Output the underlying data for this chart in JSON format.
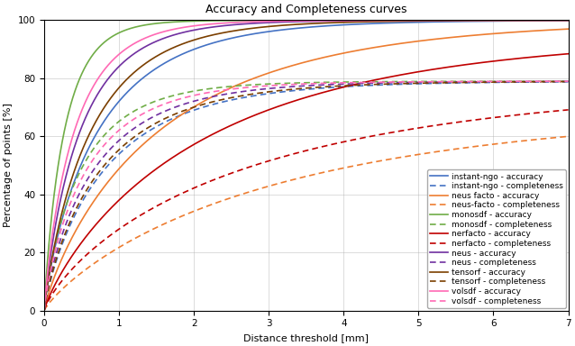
{
  "title": "Accuracy and Completeness curves",
  "xlabel": "Distance threshold [mm]",
  "ylabel": "Percentage of points [%]",
  "xlim": [
    0,
    7
  ],
  "ylim": [
    0,
    100
  ],
  "xticks": [
    0,
    1,
    2,
    3,
    4,
    5,
    6,
    7
  ],
  "yticks": [
    0,
    20,
    40,
    60,
    80,
    100
  ],
  "curves": [
    {
      "label": "instant-ngo - accuracy",
      "color": "#4472C4",
      "ls": "solid",
      "ymax": 100.0,
      "scale": 0.75,
      "shape": 0.85
    },
    {
      "label": "instant-ngo - completeness",
      "color": "#4472C4",
      "ls": "dashed",
      "ymax": 79.0,
      "scale": 0.85,
      "shape": 0.85
    },
    {
      "label": "neus facto - accuracy",
      "color": "#ED7D31",
      "ls": "solid",
      "ymax": 100.0,
      "scale": 1.6,
      "shape": 0.85
    },
    {
      "label": "neus-facto - completeness",
      "color": "#ED7D31",
      "ls": "dashed",
      "ymax": 70.0,
      "scale": 3.2,
      "shape": 0.85
    },
    {
      "label": "monosdf - accuracy",
      "color": "#70AD47",
      "ls": "solid",
      "ymax": 100.0,
      "scale": 0.28,
      "shape": 0.9
    },
    {
      "label": "monosdf - completeness",
      "color": "#70AD47",
      "ls": "dashed",
      "ymax": 79.0,
      "scale": 0.52,
      "shape": 0.85
    },
    {
      "label": "nerfacto - accuracy",
      "color": "#C00000",
      "ls": "solid",
      "ymax": 95.0,
      "scale": 2.2,
      "shape": 0.85
    },
    {
      "label": "nerfacto - completeness",
      "color": "#C00000",
      "ls": "dashed",
      "ymax": 79.0,
      "scale": 2.8,
      "shape": 0.8
    },
    {
      "label": "neus - accuracy",
      "color": "#7030A0",
      "ls": "solid",
      "ymax": 100.0,
      "scale": 0.5,
      "shape": 0.88
    },
    {
      "label": "neus - completeness",
      "color": "#7030A0",
      "ls": "dashed",
      "ymax": 79.0,
      "scale": 0.7,
      "shape": 0.85
    },
    {
      "label": "tensorf - accuracy",
      "color": "#7B3F00",
      "ls": "solid",
      "ymax": 100.0,
      "scale": 0.65,
      "shape": 0.88
    },
    {
      "label": "tensorf - completeness",
      "color": "#7B3F00",
      "ls": "dashed",
      "ymax": 79.0,
      "scale": 0.8,
      "shape": 0.85
    },
    {
      "label": "volsdf - accuracy",
      "color": "#FF69B4",
      "ls": "solid",
      "ymax": 100.0,
      "scale": 0.42,
      "shape": 0.88
    },
    {
      "label": "volsdf - completeness",
      "color": "#FF69B4",
      "ls": "dashed",
      "ymax": 79.0,
      "scale": 0.6,
      "shape": 0.85
    }
  ],
  "background_color": "#FFFFFF",
  "title_fontsize": 9,
  "label_fontsize": 8,
  "tick_fontsize": 7.5,
  "legend_fontsize": 6.5
}
